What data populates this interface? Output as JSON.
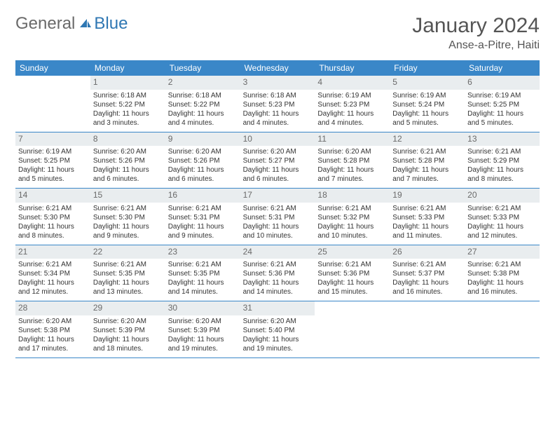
{
  "header": {
    "logo_general": "General",
    "logo_blue": "Blue",
    "title": "January 2024",
    "location": "Anse-a-Pitre, Haiti"
  },
  "colors": {
    "header_bg": "#3a87c8",
    "header_fg": "#ffffff",
    "daynum_bg": "#e9edef",
    "daynum_fg": "#6a6a6a",
    "border": "#3a87c8",
    "text": "#333333",
    "logo_general": "#6a6a6a",
    "logo_blue": "#2f77b3"
  },
  "day_names": [
    "Sunday",
    "Monday",
    "Tuesday",
    "Wednesday",
    "Thursday",
    "Friday",
    "Saturday"
  ],
  "weeks": [
    [
      {
        "n": "",
        "sunrise": "",
        "sunset": "",
        "daylight1": "",
        "daylight2": ""
      },
      {
        "n": "1",
        "sunrise": "Sunrise: 6:18 AM",
        "sunset": "Sunset: 5:22 PM",
        "daylight1": "Daylight: 11 hours",
        "daylight2": "and 3 minutes."
      },
      {
        "n": "2",
        "sunrise": "Sunrise: 6:18 AM",
        "sunset": "Sunset: 5:22 PM",
        "daylight1": "Daylight: 11 hours",
        "daylight2": "and 4 minutes."
      },
      {
        "n": "3",
        "sunrise": "Sunrise: 6:18 AM",
        "sunset": "Sunset: 5:23 PM",
        "daylight1": "Daylight: 11 hours",
        "daylight2": "and 4 minutes."
      },
      {
        "n": "4",
        "sunrise": "Sunrise: 6:19 AM",
        "sunset": "Sunset: 5:23 PM",
        "daylight1": "Daylight: 11 hours",
        "daylight2": "and 4 minutes."
      },
      {
        "n": "5",
        "sunrise": "Sunrise: 6:19 AM",
        "sunset": "Sunset: 5:24 PM",
        "daylight1": "Daylight: 11 hours",
        "daylight2": "and 5 minutes."
      },
      {
        "n": "6",
        "sunrise": "Sunrise: 6:19 AM",
        "sunset": "Sunset: 5:25 PM",
        "daylight1": "Daylight: 11 hours",
        "daylight2": "and 5 minutes."
      }
    ],
    [
      {
        "n": "7",
        "sunrise": "Sunrise: 6:19 AM",
        "sunset": "Sunset: 5:25 PM",
        "daylight1": "Daylight: 11 hours",
        "daylight2": "and 5 minutes."
      },
      {
        "n": "8",
        "sunrise": "Sunrise: 6:20 AM",
        "sunset": "Sunset: 5:26 PM",
        "daylight1": "Daylight: 11 hours",
        "daylight2": "and 6 minutes."
      },
      {
        "n": "9",
        "sunrise": "Sunrise: 6:20 AM",
        "sunset": "Sunset: 5:26 PM",
        "daylight1": "Daylight: 11 hours",
        "daylight2": "and 6 minutes."
      },
      {
        "n": "10",
        "sunrise": "Sunrise: 6:20 AM",
        "sunset": "Sunset: 5:27 PM",
        "daylight1": "Daylight: 11 hours",
        "daylight2": "and 6 minutes."
      },
      {
        "n": "11",
        "sunrise": "Sunrise: 6:20 AM",
        "sunset": "Sunset: 5:28 PM",
        "daylight1": "Daylight: 11 hours",
        "daylight2": "and 7 minutes."
      },
      {
        "n": "12",
        "sunrise": "Sunrise: 6:21 AM",
        "sunset": "Sunset: 5:28 PM",
        "daylight1": "Daylight: 11 hours",
        "daylight2": "and 7 minutes."
      },
      {
        "n": "13",
        "sunrise": "Sunrise: 6:21 AM",
        "sunset": "Sunset: 5:29 PM",
        "daylight1": "Daylight: 11 hours",
        "daylight2": "and 8 minutes."
      }
    ],
    [
      {
        "n": "14",
        "sunrise": "Sunrise: 6:21 AM",
        "sunset": "Sunset: 5:30 PM",
        "daylight1": "Daylight: 11 hours",
        "daylight2": "and 8 minutes."
      },
      {
        "n": "15",
        "sunrise": "Sunrise: 6:21 AM",
        "sunset": "Sunset: 5:30 PM",
        "daylight1": "Daylight: 11 hours",
        "daylight2": "and 9 minutes."
      },
      {
        "n": "16",
        "sunrise": "Sunrise: 6:21 AM",
        "sunset": "Sunset: 5:31 PM",
        "daylight1": "Daylight: 11 hours",
        "daylight2": "and 9 minutes."
      },
      {
        "n": "17",
        "sunrise": "Sunrise: 6:21 AM",
        "sunset": "Sunset: 5:31 PM",
        "daylight1": "Daylight: 11 hours",
        "daylight2": "and 10 minutes."
      },
      {
        "n": "18",
        "sunrise": "Sunrise: 6:21 AM",
        "sunset": "Sunset: 5:32 PM",
        "daylight1": "Daylight: 11 hours",
        "daylight2": "and 10 minutes."
      },
      {
        "n": "19",
        "sunrise": "Sunrise: 6:21 AM",
        "sunset": "Sunset: 5:33 PM",
        "daylight1": "Daylight: 11 hours",
        "daylight2": "and 11 minutes."
      },
      {
        "n": "20",
        "sunrise": "Sunrise: 6:21 AM",
        "sunset": "Sunset: 5:33 PM",
        "daylight1": "Daylight: 11 hours",
        "daylight2": "and 12 minutes."
      }
    ],
    [
      {
        "n": "21",
        "sunrise": "Sunrise: 6:21 AM",
        "sunset": "Sunset: 5:34 PM",
        "daylight1": "Daylight: 11 hours",
        "daylight2": "and 12 minutes."
      },
      {
        "n": "22",
        "sunrise": "Sunrise: 6:21 AM",
        "sunset": "Sunset: 5:35 PM",
        "daylight1": "Daylight: 11 hours",
        "daylight2": "and 13 minutes."
      },
      {
        "n": "23",
        "sunrise": "Sunrise: 6:21 AM",
        "sunset": "Sunset: 5:35 PM",
        "daylight1": "Daylight: 11 hours",
        "daylight2": "and 14 minutes."
      },
      {
        "n": "24",
        "sunrise": "Sunrise: 6:21 AM",
        "sunset": "Sunset: 5:36 PM",
        "daylight1": "Daylight: 11 hours",
        "daylight2": "and 14 minutes."
      },
      {
        "n": "25",
        "sunrise": "Sunrise: 6:21 AM",
        "sunset": "Sunset: 5:36 PM",
        "daylight1": "Daylight: 11 hours",
        "daylight2": "and 15 minutes."
      },
      {
        "n": "26",
        "sunrise": "Sunrise: 6:21 AM",
        "sunset": "Sunset: 5:37 PM",
        "daylight1": "Daylight: 11 hours",
        "daylight2": "and 16 minutes."
      },
      {
        "n": "27",
        "sunrise": "Sunrise: 6:21 AM",
        "sunset": "Sunset: 5:38 PM",
        "daylight1": "Daylight: 11 hours",
        "daylight2": "and 16 minutes."
      }
    ],
    [
      {
        "n": "28",
        "sunrise": "Sunrise: 6:20 AM",
        "sunset": "Sunset: 5:38 PM",
        "daylight1": "Daylight: 11 hours",
        "daylight2": "and 17 minutes."
      },
      {
        "n": "29",
        "sunrise": "Sunrise: 6:20 AM",
        "sunset": "Sunset: 5:39 PM",
        "daylight1": "Daylight: 11 hours",
        "daylight2": "and 18 minutes."
      },
      {
        "n": "30",
        "sunrise": "Sunrise: 6:20 AM",
        "sunset": "Sunset: 5:39 PM",
        "daylight1": "Daylight: 11 hours",
        "daylight2": "and 19 minutes."
      },
      {
        "n": "31",
        "sunrise": "Sunrise: 6:20 AM",
        "sunset": "Sunset: 5:40 PM",
        "daylight1": "Daylight: 11 hours",
        "daylight2": "and 19 minutes."
      },
      {
        "n": "",
        "sunrise": "",
        "sunset": "",
        "daylight1": "",
        "daylight2": ""
      },
      {
        "n": "",
        "sunrise": "",
        "sunset": "",
        "daylight1": "",
        "daylight2": ""
      },
      {
        "n": "",
        "sunrise": "",
        "sunset": "",
        "daylight1": "",
        "daylight2": ""
      }
    ]
  ]
}
